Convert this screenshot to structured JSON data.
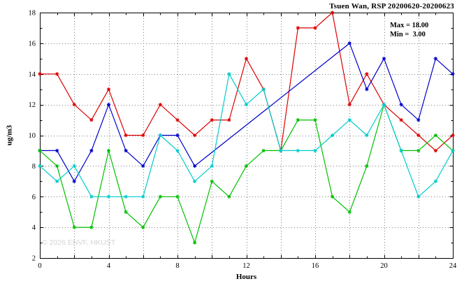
{
  "header": {
    "title": "Tsuen Wan, RSP 20200620-20200623"
  },
  "annotation": {
    "line1": "Max = 18.00",
    "line2": "Min =  3.00"
  },
  "watermark": "© 2026 ENVF, HKUST",
  "chart_data": {
    "type": "line",
    "title": "Tsuen Wan, RSP 20200620-20200623",
    "xlabel": "Hours",
    "ylabel": "ug/m3",
    "xlim": [
      0,
      24
    ],
    "ylim": [
      2,
      18
    ],
    "x_major_tick_step": 4,
    "grid_step": 2,
    "grid": true,
    "legend": "none",
    "annotations": {
      "max": 18.0,
      "min": 3.0
    },
    "x": [
      0,
      1,
      2,
      3,
      4,
      5,
      6,
      7,
      8,
      9,
      10,
      11,
      12,
      13,
      14,
      15,
      16,
      17,
      18,
      19,
      20,
      21,
      22,
      23,
      24
    ],
    "series": [
      {
        "name": "red",
        "color": "#dd0000",
        "values": [
          14,
          14,
          12,
          11,
          13,
          10,
          10,
          12,
          11,
          10,
          11,
          11,
          15,
          13,
          9,
          17,
          17,
          18,
          12,
          14,
          12,
          11,
          10,
          9,
          10
        ]
      },
      {
        "name": "blue",
        "color": "#0000cc",
        "values": [
          9,
          9,
          7,
          9,
          12,
          9,
          8,
          10,
          10,
          8,
          null,
          null,
          null,
          null,
          null,
          null,
          null,
          null,
          16,
          13,
          15,
          12,
          11,
          15,
          14
        ]
      },
      {
        "name": "green",
        "color": "#00c000",
        "values": [
          9,
          8,
          4,
          4,
          9,
          5,
          4,
          6,
          6,
          3,
          7,
          6,
          8,
          9,
          9,
          11,
          11,
          6,
          5,
          8,
          12,
          9,
          9,
          10,
          9
        ]
      },
      {
        "name": "cyan",
        "color": "#00cccc",
        "values": [
          8,
          7,
          8,
          6,
          6,
          6,
          6,
          10,
          9,
          7,
          8,
          14,
          12,
          13,
          9,
          9,
          9,
          10,
          11,
          10,
          12,
          9,
          6,
          7,
          9
        ]
      }
    ]
  }
}
